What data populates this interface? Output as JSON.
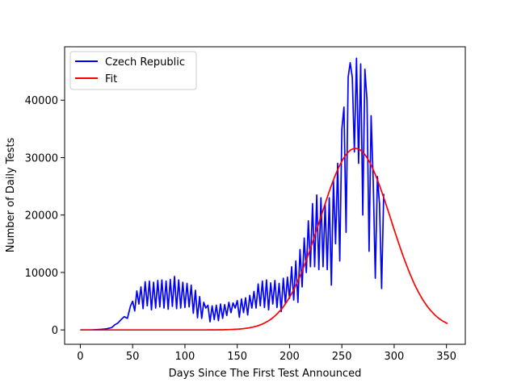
{
  "chart_data": {
    "type": "line",
    "title": "",
    "xlabel": "Days Since The First Test Announced",
    "ylabel": "Number of Daily Tests",
    "xlim": [
      -15,
      368
    ],
    "ylim": [
      -2500,
      49300
    ],
    "xticks": [
      0,
      50,
      100,
      150,
      200,
      250,
      300,
      350
    ],
    "yticks": [
      0,
      10000,
      20000,
      30000,
      40000
    ],
    "grid": false,
    "legend_position": "top-left",
    "series": [
      {
        "name": "Czech Republic",
        "color": "#0000ff",
        "style": "oscillating",
        "x": [
          0,
          10,
          20,
          25,
          30,
          33,
          36,
          39,
          42,
          45,
          48,
          50,
          52,
          54,
          56,
          58,
          60,
          62,
          64,
          66,
          68,
          70,
          72,
          74,
          76,
          78,
          80,
          82,
          84,
          86,
          88,
          90,
          92,
          94,
          96,
          98,
          100,
          102,
          104,
          106,
          108,
          110,
          112,
          114,
          116,
          118,
          120,
          122,
          124,
          126,
          128,
          130,
          132,
          134,
          136,
          138,
          140,
          142,
          144,
          146,
          148,
          150,
          152,
          154,
          156,
          158,
          160,
          162,
          164,
          166,
          168,
          170,
          172,
          174,
          176,
          178,
          180,
          182,
          184,
          186,
          188,
          190,
          192,
          194,
          196,
          198,
          200,
          202,
          204,
          206,
          208,
          210,
          212,
          214,
          216,
          218,
          220,
          222,
          224,
          226,
          228,
          230,
          232,
          234,
          236,
          238,
          240,
          242,
          244,
          246,
          248,
          250,
          252,
          254,
          256,
          258,
          260,
          262,
          264,
          266,
          268,
          270,
          272,
          274,
          276,
          278,
          280,
          282,
          284,
          286,
          288,
          290
        ],
        "y": [
          0,
          0,
          100,
          200,
          400,
          900,
          1200,
          1800,
          2300,
          2000,
          4200,
          5000,
          3300,
          6800,
          4500,
          7500,
          3700,
          8400,
          4200,
          8500,
          3500,
          8300,
          3800,
          8600,
          4000,
          8700,
          3800,
          8500,
          3600,
          8800,
          4100,
          9300,
          3700,
          8700,
          3800,
          8300,
          3900,
          8100,
          4000,
          7800,
          2900,
          6900,
          2100,
          5800,
          2000,
          4800,
          3800,
          4300,
          1400,
          4200,
          1800,
          4300,
          1600,
          4500,
          2000,
          4400,
          2500,
          4800,
          3000,
          4700,
          3800,
          5100,
          2200,
          5400,
          3000,
          5600,
          2600,
          6000,
          3800,
          6700,
          3800,
          8000,
          4200,
          8500,
          3900,
          8700,
          3500,
          8200,
          4500,
          8600,
          3900,
          8100,
          3200,
          9000,
          4500,
          9200,
          5500,
          11000,
          5200,
          12000,
          4800,
          14000,
          7500,
          16000,
          10000,
          19000,
          11000,
          22000,
          11000,
          23500,
          10500,
          23000,
          11000,
          22000,
          10500,
          23000,
          7800,
          26000,
          15000,
          29000,
          12000,
          35000,
          38800,
          17000,
          44000,
          46500,
          44000,
          31000,
          47300,
          29000,
          46300,
          20000,
          45400,
          40000,
          13700,
          37300,
          26000,
          9000,
          26700,
          22000,
          7200,
          23700
        ]
      },
      {
        "name": "Fit",
        "color": "#ff0000",
        "style": "gaussian",
        "peak": 31600,
        "center": 263,
        "sigma": 34,
        "xrange": [
          0,
          351
        ]
      }
    ]
  }
}
